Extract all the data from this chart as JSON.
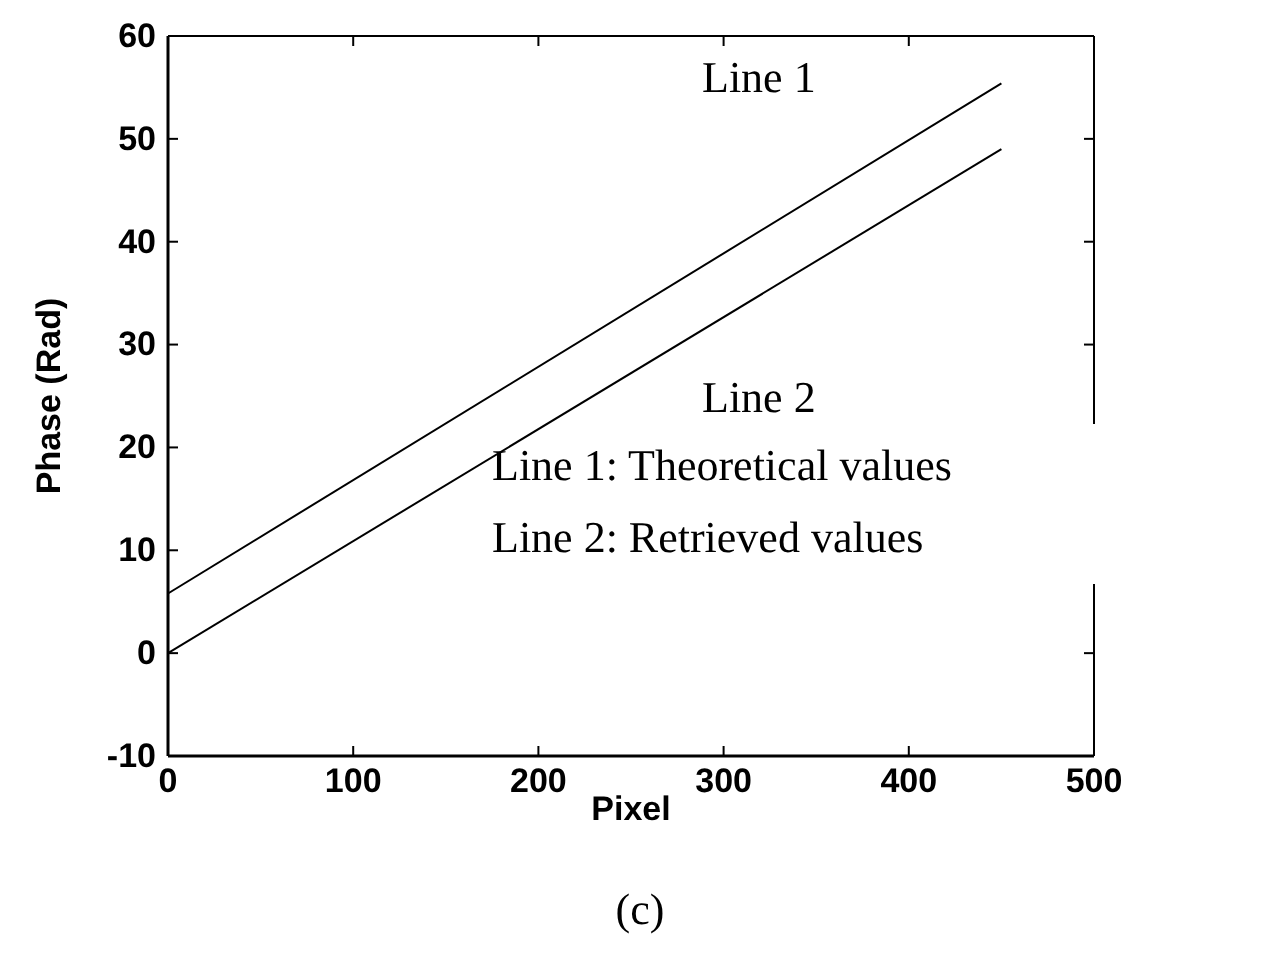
{
  "chart_data": {
    "type": "line",
    "xlabel": "Pixel",
    "ylabel": "Phase (Rad)",
    "xlim": [
      0,
      500
    ],
    "xticks": [
      0,
      100,
      200,
      300,
      400,
      500
    ],
    "ylim": [
      -10,
      60
    ],
    "yticks": [
      -10,
      0,
      10,
      20,
      30,
      40,
      50,
      60
    ],
    "series": [
      {
        "color": "#000000",
        "values": [
          5.8,
          55.4
        ]
      },
      {
        "color": "#000000",
        "values": [
          0,
          49
        ]
      }
    ],
    "x": [
      0,
      450
    ],
    "annotations": [
      "Line 1",
      "Line 2",
      "Line 1: Theoretical values",
      "Line 2: Retrieved values",
      "(c)"
    ]
  }
}
